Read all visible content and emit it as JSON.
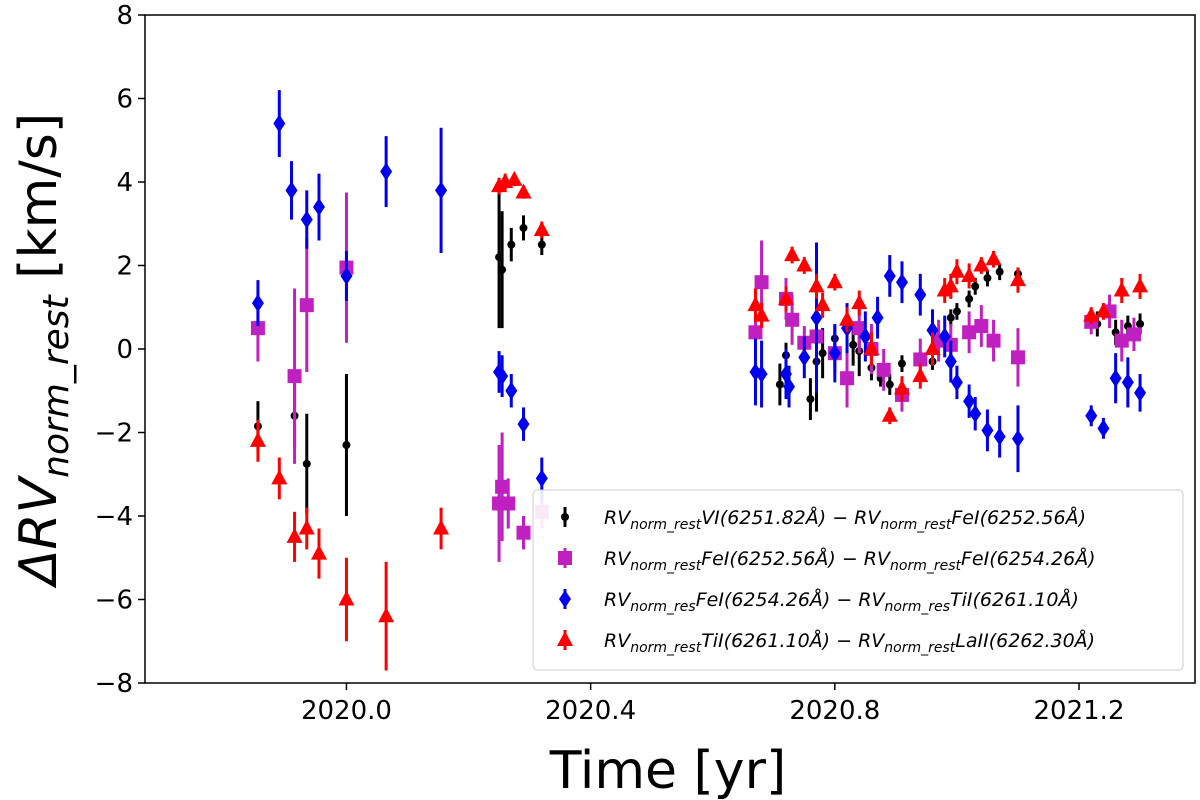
{
  "chart_data": {
    "type": "scatter",
    "xlabel": "Time [yr]",
    "ylabel": {
      "main": "ΔRV",
      "sub": "norm_rest",
      "unit": " [km/s]"
    },
    "xlim": [
      2019.67,
      2021.39
    ],
    "ylim": [
      -8,
      8
    ],
    "xticks": [
      2020.0,
      2020.4,
      2020.8,
      2021.2
    ],
    "xtick_labels": [
      "2020.0",
      "2020.4",
      "2020.8",
      "2021.2"
    ],
    "yticks": [
      -8,
      -6,
      -4,
      -2,
      0,
      2,
      4,
      6,
      8
    ],
    "ytick_labels": [
      "−8",
      "−6",
      "−4",
      "−2",
      "0",
      "2",
      "4",
      "6",
      "8"
    ],
    "legend_position": "lower-right",
    "series": [
      {
        "name": "RV_norm_rest VI(6251.82Å) − RV_norm_rest FeI(6252.56Å)",
        "legend": [
          {
            "t": "RV",
            "sub": "norm_rest"
          },
          {
            "t": "VI(6251.82Å) − RV",
            "sub": "norm_rest"
          },
          {
            "t": "FeI(6252.56Å)"
          }
        ],
        "color": "#000000",
        "marker": "circle",
        "points": [
          [
            2019.855,
            -1.85,
            0.6
          ],
          [
            2019.915,
            -1.6,
            0.8
          ],
          [
            2019.935,
            -2.75,
            1.2
          ],
          [
            2020.0,
            -2.3,
            1.7
          ],
          [
            2020.25,
            2.2,
            1.7
          ],
          [
            2020.255,
            1.9,
            1.4
          ],
          [
            2020.27,
            2.5,
            0.4
          ],
          [
            2020.29,
            2.9,
            0.3
          ],
          [
            2020.32,
            2.5,
            0.25
          ],
          [
            2020.71,
            -0.85,
            0.5
          ],
          [
            2020.72,
            -0.15,
            0.3
          ],
          [
            2020.76,
            -1.2,
            0.5
          ],
          [
            2020.77,
            -0.3,
            1.2
          ],
          [
            2020.78,
            -0.1,
            0.6
          ],
          [
            2020.8,
            0.25,
            0.3
          ],
          [
            2020.83,
            0.1,
            0.5
          ],
          [
            2020.84,
            -0.05,
            0.6
          ],
          [
            2020.86,
            -0.45,
            0.3
          ],
          [
            2020.875,
            -0.7,
            0.2
          ],
          [
            2020.89,
            -0.85,
            0.25
          ],
          [
            2020.91,
            -0.35,
            0.2
          ],
          [
            2020.96,
            -0.3,
            0.2
          ],
          [
            2020.99,
            0.75,
            0.2
          ],
          [
            2021.0,
            0.9,
            0.2
          ],
          [
            2021.02,
            1.2,
            0.2
          ],
          [
            2021.03,
            1.5,
            0.2
          ],
          [
            2021.05,
            1.7,
            0.2
          ],
          [
            2021.07,
            1.85,
            0.2
          ],
          [
            2021.1,
            1.8,
            0.15
          ],
          [
            2021.23,
            0.6,
            0.3
          ],
          [
            2021.26,
            0.4,
            0.3
          ],
          [
            2021.28,
            0.55,
            0.25
          ],
          [
            2021.3,
            0.6,
            0.25
          ]
        ]
      },
      {
        "name": "RV_norm_rest FeI(6252.56Å) − RV_norm_rest FeI(6254.26Å)",
        "legend": [
          {
            "t": "RV",
            "sub": "norm_rest"
          },
          {
            "t": "FeI(6252.56Å) − RV",
            "sub": "norm_rest"
          },
          {
            "t": "FeI(6254.26Å)"
          }
        ],
        "color": "#c020c0",
        "marker": "square",
        "points": [
          [
            2019.855,
            0.5,
            0.8
          ],
          [
            2019.915,
            -0.65,
            2.1
          ],
          [
            2019.935,
            1.05,
            1.6
          ],
          [
            2020.0,
            1.95,
            1.8
          ],
          [
            2020.25,
            -3.7,
            1.4
          ],
          [
            2020.255,
            -3.3,
            1.3
          ],
          [
            2020.265,
            -3.7,
            0.6
          ],
          [
            2020.29,
            -4.4,
            0.4
          ],
          [
            2020.32,
            -3.9,
            0.4
          ],
          [
            2020.67,
            0.4,
            0.7
          ],
          [
            2020.68,
            1.6,
            1.0
          ],
          [
            2020.72,
            1.2,
            0.5
          ],
          [
            2020.73,
            0.7,
            0.6
          ],
          [
            2020.75,
            0.15,
            0.4
          ],
          [
            2020.77,
            0.3,
            0.5
          ],
          [
            2020.8,
            -0.1,
            0.5
          ],
          [
            2020.82,
            -0.7,
            0.7
          ],
          [
            2020.84,
            0.5,
            0.6
          ],
          [
            2020.86,
            0.0,
            0.6
          ],
          [
            2020.88,
            -0.5,
            0.5
          ],
          [
            2020.91,
            -1.1,
            0.4
          ],
          [
            2020.94,
            -0.25,
            0.5
          ],
          [
            2020.97,
            0.2,
            0.5
          ],
          [
            2020.99,
            0.1,
            0.5
          ],
          [
            2021.02,
            0.4,
            0.5
          ],
          [
            2021.04,
            0.55,
            0.5
          ],
          [
            2021.06,
            0.2,
            0.5
          ],
          [
            2021.1,
            -0.2,
            0.7
          ],
          [
            2021.22,
            0.65,
            0.3
          ],
          [
            2021.25,
            0.9,
            0.4
          ],
          [
            2021.27,
            0.2,
            0.5
          ],
          [
            2021.29,
            0.35,
            0.4
          ]
        ]
      },
      {
        "name": "RV_norm_res FeI(6254.26Å) − RV_norm_res TiI(6261.10Å)",
        "legend": [
          {
            "t": "RV",
            "sub": "norm_res"
          },
          {
            "t": "FeI(6254.26Å) − RV",
            "sub": "norm_res"
          },
          {
            "t": "TiI(6261.10Å)"
          }
        ],
        "color": "#0000ee",
        "marker": "diamond",
        "points": [
          [
            2019.855,
            1.1,
            0.55
          ],
          [
            2019.89,
            5.4,
            0.8
          ],
          [
            2019.91,
            3.8,
            0.7
          ],
          [
            2019.935,
            3.1,
            0.7
          ],
          [
            2019.955,
            3.4,
            0.8
          ],
          [
            2020.0,
            1.75,
            0.6
          ],
          [
            2020.065,
            4.25,
            0.85
          ],
          [
            2020.155,
            3.8,
            1.5
          ],
          [
            2020.25,
            -0.55,
            0.5
          ],
          [
            2020.255,
            -0.65,
            0.5
          ],
          [
            2020.27,
            -1.0,
            0.4
          ],
          [
            2020.29,
            -1.8,
            0.4
          ],
          [
            2020.32,
            -3.1,
            0.5
          ],
          [
            2020.67,
            -0.55,
            0.8
          ],
          [
            2020.68,
            -0.6,
            0.8
          ],
          [
            2020.72,
            -0.6,
            0.6
          ],
          [
            2020.725,
            -0.9,
            0.5
          ],
          [
            2020.75,
            -0.2,
            0.5
          ],
          [
            2020.77,
            0.75,
            1.8
          ],
          [
            2020.8,
            -0.1,
            0.7
          ],
          [
            2020.82,
            0.5,
            0.6
          ],
          [
            2020.85,
            0.3,
            0.6
          ],
          [
            2020.87,
            0.75,
            0.5
          ],
          [
            2020.89,
            1.75,
            0.5
          ],
          [
            2020.91,
            1.6,
            0.5
          ],
          [
            2020.94,
            1.3,
            0.5
          ],
          [
            2020.96,
            0.45,
            0.5
          ],
          [
            2020.98,
            0.3,
            0.5
          ],
          [
            2020.99,
            -0.3,
            0.5
          ],
          [
            2021.0,
            -0.8,
            0.4
          ],
          [
            2021.02,
            -1.25,
            0.4
          ],
          [
            2021.03,
            -1.55,
            0.4
          ],
          [
            2021.05,
            -1.95,
            0.5
          ],
          [
            2021.07,
            -2.1,
            0.5
          ],
          [
            2021.1,
            -2.15,
            0.8
          ],
          [
            2021.22,
            -1.6,
            0.25
          ],
          [
            2021.24,
            -1.9,
            0.25
          ],
          [
            2021.26,
            -0.7,
            0.6
          ],
          [
            2021.28,
            -0.8,
            0.6
          ],
          [
            2021.3,
            -1.05,
            0.45
          ]
        ]
      },
      {
        "name": "RV_norm_rest TiI(6261.10Å) − RV_norm_rest LaII(6262.30Å)",
        "legend": [
          {
            "t": "RV",
            "sub": "norm_rest"
          },
          {
            "t": "TiI(6261.10Å) − RV",
            "sub": "norm_rest"
          },
          {
            "t": "LaII(6262.30Å)"
          }
        ],
        "color": "#ff0000",
        "marker": "triangle",
        "points": [
          [
            2019.855,
            -2.2,
            0.5
          ],
          [
            2019.89,
            -3.1,
            0.5
          ],
          [
            2019.915,
            -4.5,
            0.6
          ],
          [
            2019.935,
            -4.3,
            0.5
          ],
          [
            2019.955,
            -4.9,
            0.6
          ],
          [
            2020.0,
            -6.0,
            1.0
          ],
          [
            2020.065,
            -6.4,
            1.3
          ],
          [
            2020.155,
            -4.3,
            0.5
          ],
          [
            2020.25,
            3.9,
            0.2
          ],
          [
            2020.26,
            4.0,
            0.2
          ],
          [
            2020.275,
            4.05,
            0.15
          ],
          [
            2020.29,
            3.75,
            0.15
          ],
          [
            2020.32,
            2.85,
            0.2
          ],
          [
            2020.67,
            1.05,
            0.4
          ],
          [
            2020.68,
            0.8,
            0.3
          ],
          [
            2020.72,
            1.2,
            0.3
          ],
          [
            2020.73,
            2.25,
            0.2
          ],
          [
            2020.75,
            2.0,
            0.2
          ],
          [
            2020.77,
            1.5,
            0.3
          ],
          [
            2020.78,
            1.05,
            0.3
          ],
          [
            2020.8,
            1.6,
            0.2
          ],
          [
            2020.82,
            0.7,
            0.3
          ],
          [
            2020.84,
            1.1,
            0.3
          ],
          [
            2020.86,
            0.0,
            0.4
          ],
          [
            2020.89,
            -1.6,
            0.2
          ],
          [
            2020.91,
            -0.95,
            0.3
          ],
          [
            2020.94,
            -0.65,
            0.3
          ],
          [
            2020.96,
            0.0,
            0.4
          ],
          [
            2020.98,
            1.4,
            0.3
          ],
          [
            2020.99,
            1.5,
            0.3
          ],
          [
            2021.0,
            1.85,
            0.3
          ],
          [
            2021.02,
            1.75,
            0.3
          ],
          [
            2021.04,
            2.0,
            0.2
          ],
          [
            2021.06,
            2.15,
            0.2
          ],
          [
            2021.1,
            1.65,
            0.3
          ],
          [
            2021.22,
            0.8,
            0.2
          ],
          [
            2021.24,
            0.9,
            0.2
          ],
          [
            2021.27,
            1.4,
            0.3
          ],
          [
            2021.3,
            1.5,
            0.3
          ]
        ]
      }
    ]
  }
}
